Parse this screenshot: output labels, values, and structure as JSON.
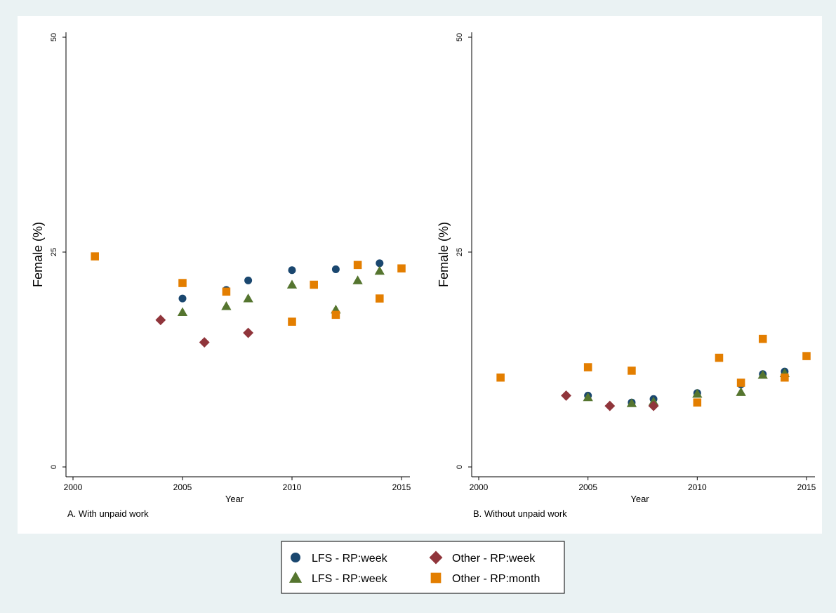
{
  "colors": {
    "background": "#eaf2f3",
    "plot_region": "#ffffff",
    "lfs_circle": "#1a476f",
    "lfs_triangle": "#55752f",
    "other_diamond": "#90353b",
    "other_square": "#e37e00"
  },
  "legend": {
    "items": [
      {
        "label": "LFS - RP:week",
        "marker": "circle",
        "color": "#1a476f"
      },
      {
        "label": "Other - RP:week",
        "marker": "diamond",
        "color": "#90353b"
      },
      {
        "label": "LFS - RP:week",
        "marker": "triangle",
        "color": "#55752f"
      },
      {
        "label": "Other - RP:month",
        "marker": "square",
        "color": "#e37e00"
      }
    ]
  },
  "chart_data": [
    {
      "type": "scatter",
      "caption": "A. With unpaid work",
      "xlabel": "Year",
      "ylabel": "Female (%)",
      "xlim": [
        2000,
        2015
      ],
      "ylim": [
        0,
        50
      ],
      "xticks": [
        "2000",
        "2005",
        "2010",
        "2015"
      ],
      "yticks": [
        "0",
        "25",
        "50"
      ],
      "grid": false,
      "series": [
        {
          "name": "LFS - RP:week",
          "marker": "circle",
          "x": [
            2005,
            2007,
            2008,
            2010,
            2012,
            2013,
            2014
          ],
          "y": [
            19.6,
            20.6,
            21.7,
            22.9,
            23.0,
            23.5,
            23.7
          ]
        },
        {
          "name": "LFS - RP:week",
          "marker": "triangle",
          "x": [
            2005,
            2007,
            2008,
            2010,
            2012,
            2013,
            2014
          ],
          "y": [
            18.0,
            18.7,
            19.6,
            21.2,
            18.3,
            21.7,
            22.8
          ]
        },
        {
          "name": "Other - RP:week",
          "marker": "diamond",
          "x": [
            2004,
            2006,
            2008
          ],
          "y": [
            17.1,
            14.5,
            15.6
          ]
        },
        {
          "name": "Other - RP:month",
          "marker": "square",
          "x": [
            2001,
            2005,
            2007,
            2010,
            2011,
            2012,
            2013,
            2014,
            2015
          ],
          "y": [
            24.5,
            21.4,
            20.4,
            16.9,
            21.2,
            17.7,
            23.5,
            19.6,
            23.1
          ]
        }
      ]
    },
    {
      "type": "scatter",
      "caption": "B. Without unpaid work",
      "xlabel": "Year",
      "ylabel": "Female (%)",
      "xlim": [
        2000,
        2015
      ],
      "ylim": [
        0,
        50
      ],
      "xticks": [
        "2000",
        "2005",
        "2010",
        "2015"
      ],
      "yticks": [
        "0",
        "25",
        "50"
      ],
      "grid": false,
      "series": [
        {
          "name": "LFS - RP:week",
          "marker": "circle",
          "x": [
            2005,
            2007,
            2008,
            2010,
            2012,
            2013,
            2014
          ],
          "y": [
            8.3,
            7.5,
            7.9,
            8.6,
            9.6,
            10.8,
            11.1
          ]
        },
        {
          "name": "LFS - RP:week",
          "marker": "triangle",
          "x": [
            2005,
            2007,
            2008,
            2010,
            2012,
            2013,
            2014
          ],
          "y": [
            8.1,
            7.4,
            7.6,
            8.5,
            8.7,
            10.7,
            10.9
          ]
        },
        {
          "name": "Other - RP:week",
          "marker": "diamond",
          "x": [
            2004,
            2006,
            2008
          ],
          "y": [
            8.3,
            7.1,
            7.1
          ]
        },
        {
          "name": "Other - RP:month",
          "marker": "square",
          "x": [
            2001,
            2005,
            2007,
            2010,
            2011,
            2012,
            2013,
            2014,
            2015
          ],
          "y": [
            10.4,
            11.6,
            11.2,
            7.5,
            12.7,
            9.8,
            14.9,
            10.4,
            12.9
          ]
        }
      ]
    }
  ]
}
